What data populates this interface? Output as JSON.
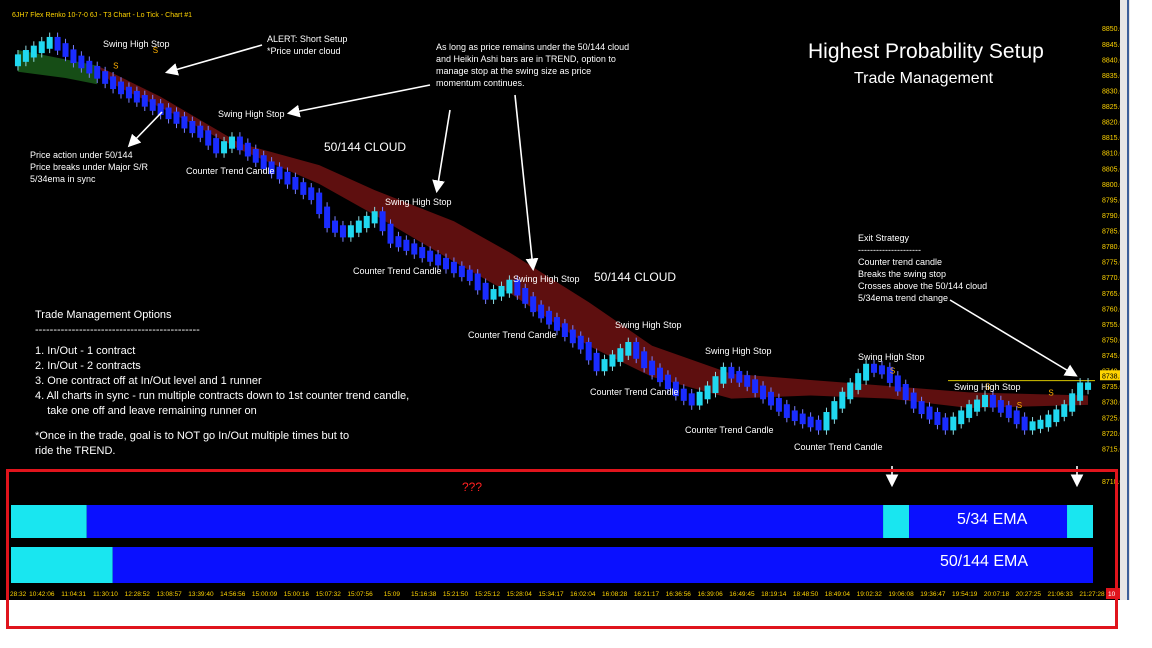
{
  "chart_title": "6JH7 Flex Renko 10-7-0 6J - T3 Chart - Lo Tick - Chart #1",
  "headline": {
    "title": "Highest Probability Setup",
    "subtitle": "Trade Management"
  },
  "annotations": {
    "alert": "ALERT: Short Setup\n*Price under cloud",
    "cloud_note": "As long as price remains under the 50/144 cloud\nand Heikin Ashi bars are in TREND, option to\nmanage stop at the swing size as price\nmomentum continues.",
    "price_action": "Price action under 50/144\nPrice breaks under Major S/R\n5/34ema in sync",
    "exit_strategy": "Exit Strategy\n---------------------\nCounter trend candle\nBreaks the swing stop\nCrosses above the 50/144 cloud\n5/34ema trend change",
    "swing_high_stop": "Swing High Stop",
    "counter_trend_candle": "Counter Trend Candle",
    "cloud_label": "50/144 CLOUD",
    "s_marker": "S",
    "question": "???"
  },
  "trade_management": {
    "heading": "Trade Management Options",
    "divider": "---------------------------------------------",
    "items": [
      "1. In/Out - 1 contract",
      "2. In/Out - 2 contracts",
      "3. One contract off at In/Out level and 1 runner",
      "4. All charts in sync - run multiple contracts down to 1st counter trend candle,",
      "    take one off and leave remaining runner on"
    ],
    "footnote": "*Once in the trade, goal is to NOT go In/Out multiple times but to\n  ride the TREND."
  },
  "indicators": [
    {
      "label": "5/34 EMA",
      "segments": [
        {
          "color": "cyan",
          "from": 0.0,
          "to": 0.07
        },
        {
          "color": "blue",
          "from": 0.07,
          "to": 0.806
        },
        {
          "color": "cyan",
          "from": 0.806,
          "to": 0.83
        },
        {
          "color": "blue",
          "from": 0.83,
          "to": 0.976
        },
        {
          "color": "cyan",
          "from": 0.976,
          "to": 1.0
        }
      ]
    },
    {
      "label": "50/144 EMA",
      "segments": [
        {
          "color": "cyan",
          "from": 0.0,
          "to": 0.094
        },
        {
          "color": "blue",
          "from": 0.094,
          "to": 1.0
        }
      ]
    }
  ],
  "colors": {
    "cyan": "#19e6f0",
    "blue": "#0a10ff",
    "cloud": "#6e1212",
    "bar_down": "#1a2cff",
    "bar_up": "#20d8f0"
  },
  "chart_data": {
    "type": "candlestick",
    "title": "6JH7 Flex Renko 10-7-0 6J - T3 Chart - Lo Tick - Chart #1",
    "ylim": [
      8710,
      8852
    ],
    "y_ticks": [
      8850.0,
      8845.0,
      8840.0,
      8835.0,
      8830.0,
      8825.0,
      8820.0,
      8815.0,
      8810.0,
      8805.0,
      8800.0,
      8795.0,
      8790.0,
      8785.0,
      8780.0,
      8775.0,
      8770.0,
      8765.0,
      8760.0,
      8755.0,
      8750.0,
      8745.0,
      8740.0,
      8735.0,
      8730.0,
      8725.0,
      8720.0,
      8715.0
    ],
    "y_tick_labels": [
      "8850.0",
      "8845.0",
      "8840.0",
      "8835.0",
      "8830.0",
      "8825.0",
      "8820.0",
      "8815.0",
      "8810.0",
      "8805.0",
      "8800.0",
      "8795.0",
      "8790.0",
      "8785.0",
      "8780.0",
      "8775.0",
      "8770.0",
      "8765.0",
      "8760.0",
      "8755.0",
      "8750.0",
      "8745.0",
      "8740.0",
      "8735.0",
      "8730.0",
      "8725.0",
      "8720.0",
      "8715.0"
    ],
    "current_price_label": "8738.5",
    "last_axis_label": "8710.0",
    "x_tick_labels": [
      "28:32",
      "10:42:06",
      "11:04:31",
      "11:30:10",
      "12:28:52",
      "13:08:57",
      "13:39:40",
      "14:56:56",
      "15:00:09",
      "15:00:16",
      "15:07:32",
      "15:07:56",
      "15:09",
      "15:16:38",
      "15:21:50",
      "15:25:12",
      "15:28:04",
      "15:34:17",
      "16:02:04",
      "16:08:28",
      "16:21:17",
      "16:36:56",
      "16:39:06",
      "16:49:45",
      "18:19:14",
      "18:48:50",
      "18:49:04",
      "19:02:32",
      "19:06:08",
      "19:36:47",
      "19:54:19",
      "20:07:18",
      "20:27:25",
      "21:06:33",
      "21:27:28"
    ],
    "x_tick_corner": "10",
    "price_path": [
      [
        0,
        8839
      ],
      [
        5,
        8846
      ],
      [
        8,
        8840
      ],
      [
        14,
        8830
      ],
      [
        20,
        8822
      ],
      [
        24,
        8816
      ],
      [
        26,
        8811
      ],
      [
        28,
        8814
      ],
      [
        32,
        8806
      ],
      [
        38,
        8796
      ],
      [
        40,
        8787
      ],
      [
        42,
        8784
      ],
      [
        46,
        8790
      ],
      [
        48,
        8782
      ],
      [
        54,
        8775
      ],
      [
        58,
        8770
      ],
      [
        60,
        8764
      ],
      [
        62,
        8766
      ],
      [
        63,
        8768
      ],
      [
        66,
        8760
      ],
      [
        72,
        8748
      ],
      [
        74,
        8741
      ],
      [
        76,
        8744
      ],
      [
        78,
        8748
      ],
      [
        80,
        8742
      ],
      [
        84,
        8733
      ],
      [
        86,
        8730
      ],
      [
        88,
        8734
      ],
      [
        90,
        8740
      ],
      [
        93,
        8736
      ],
      [
        98,
        8726
      ],
      [
        102,
        8722
      ],
      [
        104,
        8729
      ],
      [
        106,
        8735
      ],
      [
        108,
        8741
      ],
      [
        110,
        8740
      ],
      [
        114,
        8729
      ],
      [
        118,
        8722
      ],
      [
        121,
        8728
      ],
      [
        123,
        8731
      ],
      [
        126,
        8726
      ],
      [
        128,
        8722
      ],
      [
        130,
        8723
      ],
      [
        133,
        8728
      ],
      [
        135,
        8735
      ]
    ],
    "cloud_upper": [
      [
        10,
        8838
      ],
      [
        18,
        8828
      ],
      [
        28,
        8813
      ],
      [
        38,
        8806
      ],
      [
        45,
        8798
      ],
      [
        55,
        8788
      ],
      [
        62,
        8778
      ],
      [
        72,
        8762
      ],
      [
        80,
        8748
      ],
      [
        90,
        8739
      ],
      [
        100,
        8737
      ],
      [
        110,
        8735
      ],
      [
        120,
        8733
      ],
      [
        135,
        8732
      ]
    ],
    "cloud_lower": [
      [
        12,
        8832
      ],
      [
        20,
        8822
      ],
      [
        28,
        8811
      ],
      [
        38,
        8800
      ],
      [
        45,
        8790
      ],
      [
        55,
        8775
      ],
      [
        62,
        8765
      ],
      [
        72,
        8748
      ],
      [
        80,
        8738
      ],
      [
        90,
        8731
      ],
      [
        100,
        8732
      ],
      [
        110,
        8731
      ],
      [
        120,
        8728
      ],
      [
        135,
        8729
      ]
    ],
    "ema_green_upper": [
      [
        0,
        8843
      ],
      [
        6,
        8840
      ],
      [
        10,
        8838
      ]
    ],
    "ema_green_lower": [
      [
        0,
        8836
      ],
      [
        6,
        8834
      ],
      [
        10,
        8832
      ]
    ],
    "swing_high_stop_level": 8736.8,
    "s_markers": [
      [
        12,
        8837
      ],
      [
        17,
        8842
      ],
      [
        110,
        8739
      ],
      [
        122,
        8734
      ],
      [
        126,
        8728
      ],
      [
        130,
        8732
      ]
    ]
  }
}
